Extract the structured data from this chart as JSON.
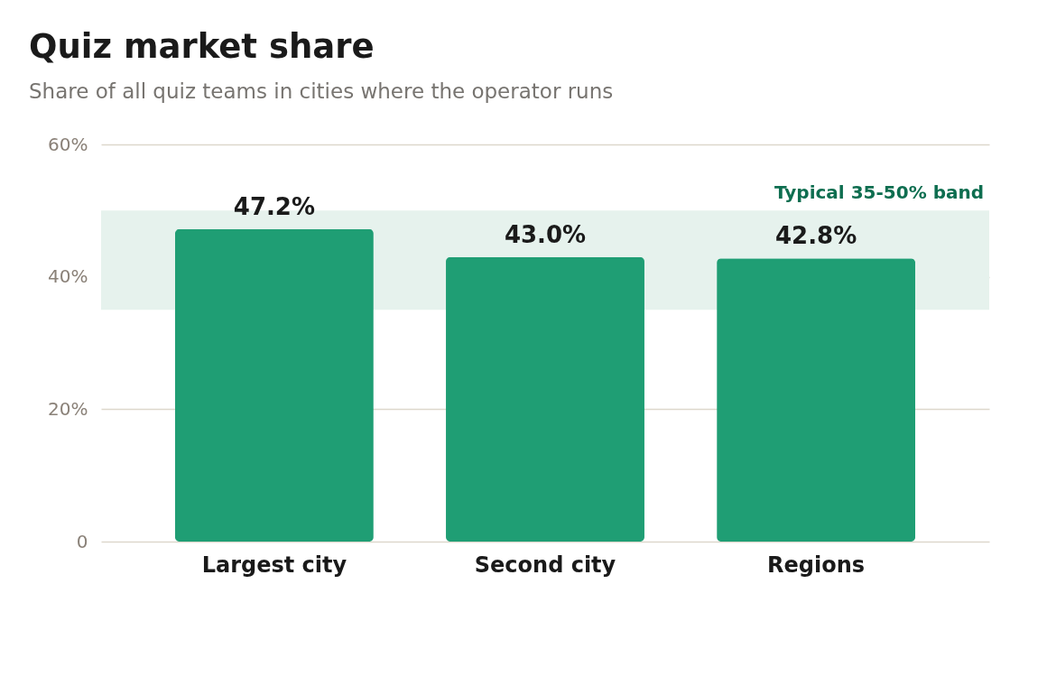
{
  "chart_data": {
    "type": "bar",
    "title": "Quiz market share",
    "subtitle": "Share of all quiz teams in cities where the operator runs",
    "categories": [
      "Largest city",
      "Second city",
      "Regions"
    ],
    "values": [
      47.2,
      43.0,
      42.8
    ],
    "value_labels": [
      "47.2%",
      "43.0%",
      "42.8%"
    ],
    "color": "#1f9e74",
    "ylim": [
      0,
      60
    ],
    "yticks": [
      {
        "value": 0,
        "label": "0"
      },
      {
        "value": 20,
        "label": "20%"
      },
      {
        "value": 40,
        "label": "40%"
      },
      {
        "value": 60,
        "label": "60%"
      }
    ],
    "bands": [
      {
        "axis": "y",
        "from": 35,
        "to": 50,
        "label": "Typical 35-50% band",
        "color": "#e6f2ed"
      }
    ],
    "grid": "y"
  }
}
